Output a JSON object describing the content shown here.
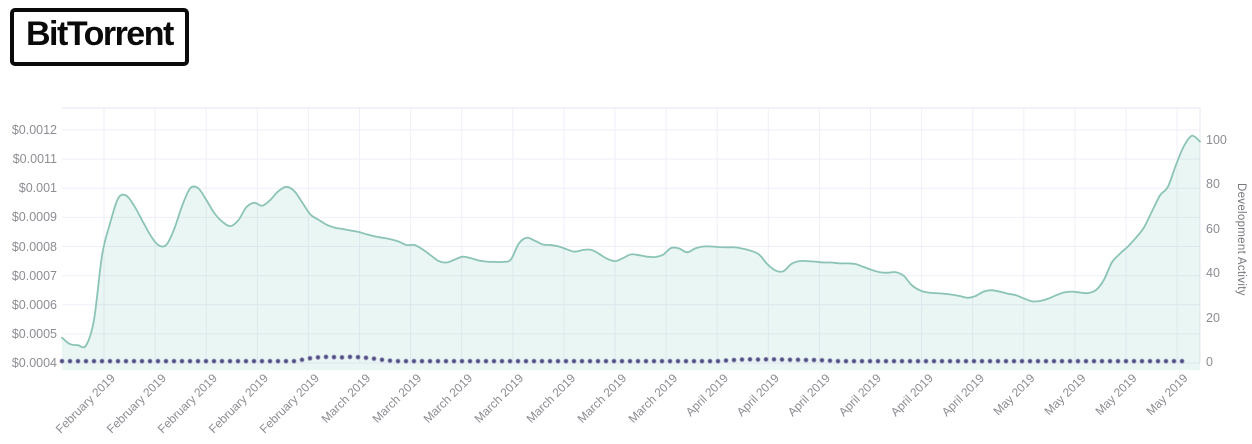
{
  "brand": {
    "logo_text": "BitTorrent"
  },
  "colors": {
    "price_line": "#8bc4b6",
    "price_fill": "#7fc5b6",
    "dev_dot": "#4f4d7e",
    "dev_dot_halo": "#8a87b8",
    "axis_text": "#8d8d93",
    "grid": "#f0eef8",
    "plot_border": "#e7e5f2",
    "logo": "#0a0a0a"
  },
  "chart_data": {
    "type": "area",
    "title": "",
    "legend": "none",
    "grid": true,
    "left_axis": {
      "format": "USD price",
      "tick_labels": [
        "$0.0012",
        "$0.0011",
        "$0.001",
        "$0.0009",
        "$0.0008",
        "$0.0007",
        "$0.0006",
        "$0.0005",
        "$0.0004"
      ],
      "tick_values": [
        0.0012,
        0.0011,
        0.001,
        0.0009,
        0.0008,
        0.0007,
        0.0006,
        0.0005,
        0.0004
      ],
      "min": 0.0004,
      "max": 0.0012
    },
    "right_axis": {
      "label": "Development Activity",
      "tick_labels": [
        "100",
        "80",
        "60",
        "40",
        "20",
        "0"
      ],
      "tick_values": [
        100,
        80,
        60,
        40,
        20,
        0
      ],
      "min": 0,
      "max": 100
    },
    "x_axis": {
      "tick_labels": [
        "February 2019",
        "February 2019",
        "February 2019",
        "February 2019",
        "February 2019",
        "March 2019",
        "March 2019",
        "March 2019",
        "March 2019",
        "March 2019",
        "March 2019",
        "March 2019",
        "April 2019",
        "April 2019",
        "April 2019",
        "April 2019",
        "April 2019",
        "April 2019",
        "May 2019",
        "May 2019",
        "May 2019",
        "May 2019"
      ]
    },
    "series": [
      {
        "name": "price_usd",
        "axis": "left",
        "style": "smooth-line-with-area-fill",
        "values": [
          0.000487,
          0.000465,
          0.000461,
          0.00046,
          0.00055,
          0.00077,
          0.00088,
          0.000965,
          0.000975,
          0.00094,
          0.00089,
          0.00084,
          0.000805,
          0.000805,
          0.00086,
          0.00094,
          0.001,
          0.001,
          0.00096,
          0.000915,
          0.000885,
          0.00087,
          0.00089,
          0.000935,
          0.00095,
          0.00094,
          0.00096,
          0.00099,
          0.001005,
          0.00099,
          0.00095,
          0.00091,
          0.000892,
          0.000875,
          0.000865,
          0.00086,
          0.000855,
          0.00085,
          0.000842,
          0.000835,
          0.00083,
          0.000825,
          0.000817,
          0.000805,
          0.000805,
          0.00079,
          0.00077,
          0.00075,
          0.000745,
          0.000755,
          0.000765,
          0.00076,
          0.000752,
          0.000748,
          0.000747,
          0.000747,
          0.000755,
          0.00081,
          0.00083,
          0.00082,
          0.000807,
          0.000805,
          0.0008,
          0.00079,
          0.000782,
          0.000788,
          0.000789,
          0.000775,
          0.000758,
          0.00075,
          0.00076,
          0.000773,
          0.00077,
          0.000765,
          0.000764,
          0.000772,
          0.000795,
          0.000793,
          0.00078,
          0.000793,
          0.0008,
          0.0008,
          0.000798,
          0.000797,
          0.000797,
          0.000792,
          0.000785,
          0.000772,
          0.00074,
          0.000718,
          0.000715,
          0.00074,
          0.00075,
          0.00075,
          0.000748,
          0.000745,
          0.000745,
          0.000742,
          0.000742,
          0.00074,
          0.00073,
          0.00072,
          0.000712,
          0.00071,
          0.000712,
          0.0007,
          0.000668,
          0.00065,
          0.000642,
          0.00064,
          0.000638,
          0.000635,
          0.00063,
          0.000624,
          0.00063,
          0.000645,
          0.00065,
          0.000645,
          0.000638,
          0.000633,
          0.000622,
          0.000612,
          0.000613,
          0.00062,
          0.000632,
          0.000642,
          0.000645,
          0.000642,
          0.00064,
          0.00065,
          0.000685,
          0.000745,
          0.000775,
          0.0008,
          0.00083,
          0.000865,
          0.00092,
          0.000975,
          0.001005,
          0.00108,
          0.001145,
          0.00118,
          0.00116
        ]
      },
      {
        "name": "development_activity",
        "axis": "right",
        "style": "dotted-markers",
        "values": [
          0.4,
          0.4,
          0.4,
          0.4,
          0.4,
          0.4,
          0.4,
          0.4,
          0.4,
          0.4,
          0.4,
          0.4,
          0.4,
          0.4,
          0.4,
          0.4,
          0.4,
          0.4,
          0.4,
          0.4,
          0.4,
          0.4,
          0.4,
          0.4,
          0.4,
          0.4,
          0.4,
          0.4,
          0.4,
          0.4,
          1.0,
          1.7,
          2.1,
          2.3,
          2.2,
          2.1,
          2.3,
          2.2,
          1.9,
          1.5,
          1.0,
          0.6,
          0.4,
          0.4,
          0.4,
          0.4,
          0.4,
          0.4,
          0.4,
          0.4,
          0.4,
          0.4,
          0.4,
          0.4,
          0.4,
          0.4,
          0.4,
          0.4,
          0.4,
          0.4,
          0.4,
          0.4,
          0.4,
          0.4,
          0.4,
          0.4,
          0.4,
          0.4,
          0.4,
          0.4,
          0.4,
          0.4,
          0.4,
          0.4,
          0.4,
          0.4,
          0.4,
          0.4,
          0.4,
          0.4,
          0.4,
          0.4,
          0.4,
          0.7,
          0.9,
          1.1,
          1.2,
          1.1,
          1.2,
          1.2,
          1.1,
          1.0,
          1.0,
          0.9,
          0.9,
          0.8,
          0.6,
          0.4,
          0.4,
          0.4,
          0.4,
          0.4,
          0.4,
          0.4,
          0.4,
          0.4,
          0.4,
          0.4,
          0.4,
          0.4,
          0.4,
          0.4,
          0.4,
          0.4,
          0.4,
          0.4,
          0.4,
          0.4,
          0.4,
          0.4,
          0.4,
          0.4,
          0.4,
          0.4,
          0.4,
          0.4,
          0.4,
          0.4,
          0.4,
          0.4,
          0.4,
          0.4,
          0.4,
          0.4,
          0.4,
          0.4,
          0.4,
          0.4,
          0.4,
          0.4,
          0.4
        ]
      }
    ]
  }
}
